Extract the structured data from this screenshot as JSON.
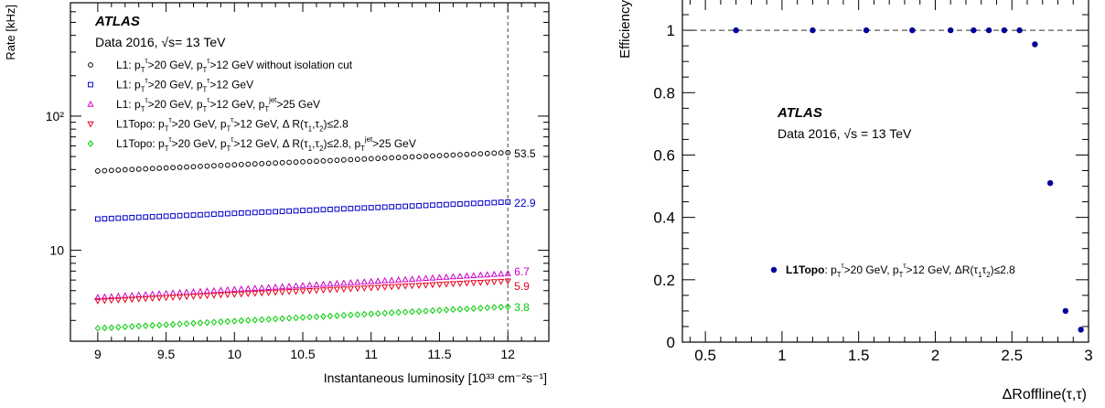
{
  "chart_data": [
    {
      "type": "scatter",
      "experiment": "ATLAS",
      "subtitle": "Data 2016, √s= 13 TeV",
      "xlabel": "Instantaneous luminosity [10³³ cm⁻²s⁻¹]",
      "ylabel": "Rate [kHz]",
      "xlim": [
        8.8,
        12.3
      ],
      "ylim": [
        2.1,
        700
      ],
      "yscale": "log",
      "x_ticks": [
        "9",
        "9.5",
        "10",
        "10.5",
        "11",
        "11.5",
        "12"
      ],
      "y_ticks": [
        "10",
        "10²"
      ],
      "reference_line_x": 12,
      "legend_placement": "top-left",
      "series": [
        {
          "name": "L1: pT^τ1>20 GeV, pT^τ2>12 GeV without isolation cut",
          "marker": "open-circle",
          "color": "#000000",
          "start": 39.0,
          "end": 53.5,
          "end_label": "53.5"
        },
        {
          "name": "L1: pT^τ1>20 GeV, pT^τ2>12 GeV",
          "marker": "open-square",
          "color": "#0000cc",
          "start": 17.1,
          "end": 22.9,
          "end_label": "22.9"
        },
        {
          "name": "L1: pT^τ1>20 GeV, pT^τ2>12 GeV, pT^jet>25 GeV",
          "marker": "open-triangle-up",
          "color": "#cc00cc",
          "start": 4.45,
          "end": 6.7,
          "end_label": "6.7"
        },
        {
          "name": "L1Topo: pT^τ1>20 GeV, pT^τ2>12 GeV, ΔR(τ1,τ2)≤2.8",
          "marker": "open-triangle-down",
          "color": "#e8001c",
          "start": 4.2,
          "end": 5.9,
          "end_label": "5.9"
        },
        {
          "name": "L1Topo: pT^τ1>20 GeV, pT^τ2>12 GeV, ΔR(τ1,τ2)≤2.8, pT^jet>25 GeV",
          "marker": "open-diamond",
          "color": "#00cc00",
          "start": 2.62,
          "end": 3.8,
          "end_label": "3.8"
        }
      ],
      "x_start": 9.0,
      "x_end": 12.0,
      "n_points": 61
    },
    {
      "type": "scatter",
      "experiment": "ATLAS",
      "subtitle": "Data 2016, √s = 13 TeV",
      "xlabel": "ΔRoffline(τ,τ)",
      "ylabel": "Efficiency",
      "xlim": [
        0.35,
        3.0
      ],
      "ylim": [
        0,
        1.1
      ],
      "x_ticks": [
        "0.5",
        "1",
        "1.5",
        "2",
        "2.5",
        "3"
      ],
      "y_ticks": [
        "0",
        "0.2",
        "0.4",
        "0.6",
        "0.8",
        "1"
      ],
      "reference_line_y": 1,
      "legend_placement": "bottom-center",
      "series": [
        {
          "name": "L1Topo: pT^τ1>20 GeV, pT^τ2>12 GeV, ΔR(τ1,τ2)≤2.8",
          "color": "#000099",
          "x": [
            0.7,
            1.2,
            1.55,
            1.85,
            2.1,
            2.25,
            2.35,
            2.45,
            2.55,
            2.65,
            2.75,
            2.85,
            2.95
          ],
          "y": [
            1.0,
            1.0,
            1.0,
            1.0,
            1.0,
            1.0,
            1.0,
            1.0,
            1.0,
            0.955,
            0.51,
            0.1,
            0.04
          ]
        }
      ]
    }
  ],
  "left_legend": [
    {
      "parts": [
        [
          "L1: p",
          ""
        ],
        [
          "T",
          "sub"
        ],
        [
          "τ",
          "sup"
        ],
        [
          ">20 GeV, p",
          ""
        ],
        [
          "T",
          "sub"
        ],
        [
          "τ",
          "sup"
        ],
        [
          ">12 GeV without isolation cut",
          ""
        ]
      ]
    },
    {
      "parts": [
        [
          "L1: p",
          ""
        ],
        [
          "T",
          "sub"
        ],
        [
          "τ",
          "sup"
        ],
        [
          ">20 GeV, p",
          ""
        ],
        [
          "T",
          "sub"
        ],
        [
          "τ",
          "sup"
        ],
        [
          ">12 GeV",
          ""
        ]
      ]
    },
    {
      "parts": [
        [
          "L1: p",
          ""
        ],
        [
          "T",
          "sub"
        ],
        [
          "τ",
          "sup"
        ],
        [
          ">20 GeV, p",
          ""
        ],
        [
          "T",
          "sub"
        ],
        [
          "τ",
          "sup"
        ],
        [
          ">12 GeV, p",
          ""
        ],
        [
          "T",
          "sub"
        ],
        [
          "jet",
          "sup"
        ],
        [
          ">25 GeV",
          ""
        ]
      ]
    },
    {
      "parts": [
        [
          "L1Topo: p",
          ""
        ],
        [
          "T",
          "sub"
        ],
        [
          "τ",
          "sup"
        ],
        [
          ">20 GeV, p",
          ""
        ],
        [
          "T",
          "sub"
        ],
        [
          "τ",
          "sup"
        ],
        [
          ">12 GeV, Δ R(τ",
          ""
        ],
        [
          "1",
          "sub"
        ],
        [
          ",τ",
          ""
        ],
        [
          "2",
          "sub"
        ],
        [
          ")≤2.8",
          ""
        ]
      ]
    },
    {
      "parts": [
        [
          "L1Topo: p",
          ""
        ],
        [
          "T",
          "sub"
        ],
        [
          "τ",
          "sup"
        ],
        [
          ">20 GeV, p",
          ""
        ],
        [
          "T",
          "sub"
        ],
        [
          "τ",
          "sup"
        ],
        [
          ">12 GeV, Δ R(τ",
          ""
        ],
        [
          "1",
          "sub"
        ],
        [
          ",τ",
          ""
        ],
        [
          "2",
          "sub"
        ],
        [
          ")≤2.8, p",
          ""
        ],
        [
          "T",
          "sub"
        ],
        [
          "jet",
          "sup"
        ],
        [
          ">25 GeV",
          ""
        ]
      ]
    }
  ],
  "right_legend": {
    "bold": "L1Topo",
    "parts": [
      [
        ": p",
        ""
      ],
      [
        "T",
        "sub"
      ],
      [
        "τ",
        "sup"
      ],
      [
        ">20 GeV, p",
        ""
      ],
      [
        "T",
        "sub"
      ],
      [
        "τ",
        "sup"
      ],
      [
        ">12 GeV, ΔR(τ",
        ""
      ],
      [
        "1",
        "sub"
      ],
      [
        "τ",
        ""
      ],
      [
        "2",
        "sub"
      ],
      [
        ")≤2.8",
        ""
      ]
    ]
  }
}
